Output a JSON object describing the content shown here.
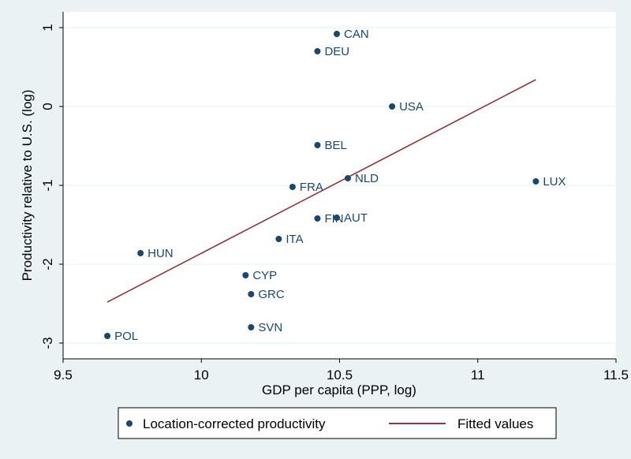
{
  "chart_data": {
    "type": "scatter",
    "xlabel": "GDP per capita (PPP, log)",
    "ylabel": "Productivity relative to U.S. (log)",
    "xlim": [
      9.5,
      11.5
    ],
    "ylim": [
      -3.2,
      1.2
    ],
    "xticks": [
      "9.5",
      "10",
      "10.5",
      "11",
      "11.5"
    ],
    "xtick_values": [
      9.5,
      10,
      10.5,
      11,
      11.5
    ],
    "yticks": [
      "1",
      "0",
      "-1",
      "-2",
      "-3"
    ],
    "ytick_values": [
      1,
      0,
      -1,
      -2,
      -3
    ],
    "grid": true,
    "legend_position": "bottom",
    "colors": {
      "points": "#1a476f",
      "fit_line": "#90353b",
      "background": "#eaf2f3",
      "plot_area": "#ffffff",
      "grid": "#eaf2f3"
    },
    "series": [
      {
        "name": "Location-corrected productivity",
        "kind": "scatter",
        "points": [
          {
            "label": "CAN",
            "x": 10.49,
            "y": 0.92
          },
          {
            "label": "DEU",
            "x": 10.42,
            "y": 0.7
          },
          {
            "label": "USA",
            "x": 10.69,
            "y": 0.0
          },
          {
            "label": "BEL",
            "x": 10.42,
            "y": -0.49
          },
          {
            "label": "NLD",
            "x": 10.53,
            "y": -0.91
          },
          {
            "label": "LUX",
            "x": 11.21,
            "y": -0.95
          },
          {
            "label": "FRA",
            "x": 10.33,
            "y": -1.02
          },
          {
            "label": "FIN",
            "x": 10.42,
            "y": -1.42
          },
          {
            "label": "AUT",
            "x": 10.49,
            "y": -1.41
          },
          {
            "label": "ITA",
            "x": 10.28,
            "y": -1.68
          },
          {
            "label": "HUN",
            "x": 9.78,
            "y": -1.86
          },
          {
            "label": "CYP",
            "x": 10.16,
            "y": -2.14
          },
          {
            "label": "GRC",
            "x": 10.18,
            "y": -2.38
          },
          {
            "label": "SVN",
            "x": 10.18,
            "y": -2.8
          },
          {
            "label": "POL",
            "x": 9.66,
            "y": -2.91
          }
        ]
      },
      {
        "name": "Fitted values",
        "kind": "line",
        "points": [
          {
            "x": 9.66,
            "y": -2.48
          },
          {
            "x": 11.21,
            "y": 0.34
          }
        ]
      }
    ]
  }
}
